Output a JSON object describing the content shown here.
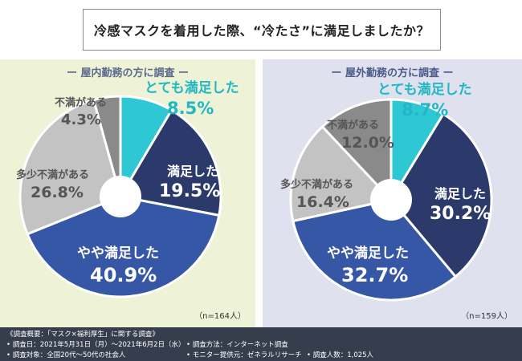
{
  "title": "冷感マスクを着用した際、“冷たさ”に満足しましたか？",
  "panels": [
    {
      "heading": "ー 屋内勤務の方に調査 ー",
      "n": "（n=164人）"
    },
    {
      "heading": "ー 屋外勤務の方に調査 ー",
      "n": "（n=159人）"
    }
  ],
  "chart_data": [
    {
      "type": "pie",
      "title": "屋内勤務の方に調査",
      "categories": [
        "とても満足した",
        "満足した",
        "やや満足した",
        "多少不満がある",
        "不満がある"
      ],
      "values": [
        8.5,
        19.5,
        40.9,
        26.8,
        4.3
      ],
      "labels": [
        "8.5%",
        "19.5%",
        "40.9%",
        "26.8%",
        "4.3%"
      ],
      "colors": [
        "#2ec7d4",
        "#2b3a6b",
        "#3656a6",
        "#c3c3c3",
        "#8a8a8a"
      ]
    },
    {
      "type": "pie",
      "title": "屋外勤務の方に調査",
      "categories": [
        "とても満足した",
        "満足した",
        "やや満足した",
        "多少不満がある",
        "不満がある"
      ],
      "values": [
        8.7,
        30.2,
        32.7,
        16.4,
        12.0
      ],
      "labels": [
        "8.7%",
        "30.2%",
        "32.7%",
        "16.4%",
        "12.0%"
      ],
      "colors": [
        "#2ec7d4",
        "#2b3a6b",
        "#3656a6",
        "#c3c3c3",
        "#8a8a8a"
      ]
    }
  ],
  "footer": {
    "overview": "《調査概要：「マスク×福利厚生」に関する調査》",
    "date": "• 調査日：2021年5月31日（月）〜2021年6月2日（水）",
    "method": "• 調査方法：インターネット調査",
    "target": "• 調査対象：全国20代〜50代の社会人",
    "provider": "• モニター提供元：ゼネラルリサーチ",
    "count": "• 調査人数：1,025人"
  }
}
